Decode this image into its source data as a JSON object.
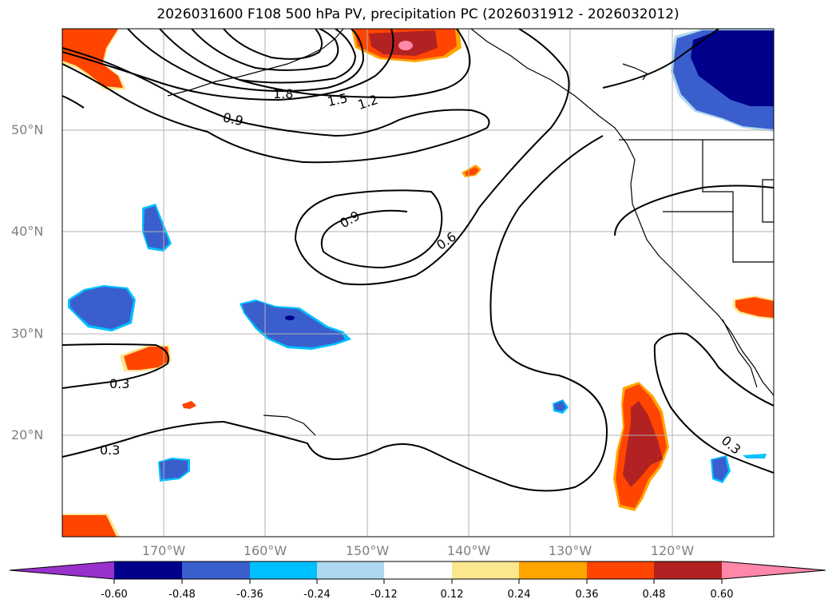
{
  "title": "2026031600 F108 500 hPa PV, precipitation PC (2026031912 - 2026032012)",
  "lat_labels": [
    "50°N",
    "40°N",
    "30°N",
    "20°N"
  ],
  "lon_labels": [
    "170°W",
    "160°W",
    "150°W",
    "140°W",
    "130°W",
    "120°W"
  ],
  "contour_labels": [
    "1.8",
    "1.5",
    "1.2",
    "0.9",
    "0.9",
    "0.6",
    "0.3",
    "0.3",
    "0.3"
  ],
  "colorbar": {
    "ticks": [
      "-0.60",
      "-0.48",
      "-0.36",
      "-0.24",
      "-0.12",
      "0.12",
      "0.24",
      "0.36",
      "0.48",
      "0.60"
    ],
    "colors": [
      "#9932cc",
      "#00008b",
      "#3a5fcd",
      "#00bfff",
      "#add8f0",
      "#ffffff",
      "#fce68e",
      "#ffa500",
      "#ff4500",
      "#b22222",
      "#ff88aa"
    ]
  },
  "colors": {
    "grid": "#b0b0b0",
    "contour": "#000000",
    "axis_label": "#808080"
  }
}
